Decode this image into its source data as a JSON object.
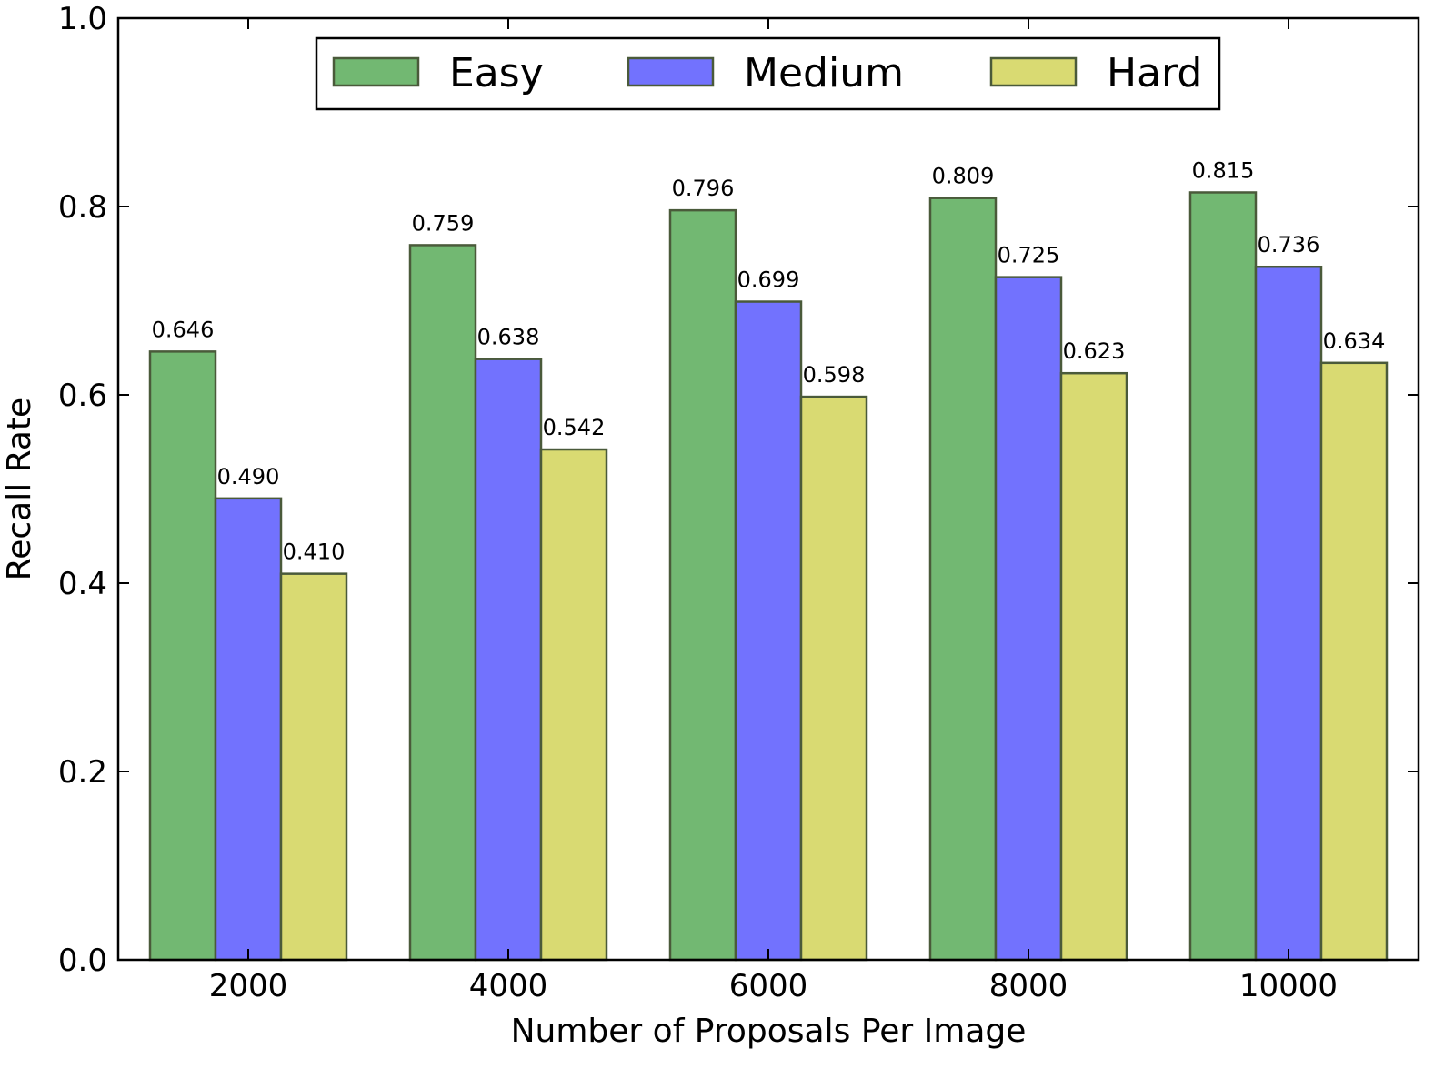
{
  "chart_data": {
    "type": "bar",
    "title": "",
    "xlabel": "Number of Proposals Per Image",
    "ylabel": "Recall Rate",
    "categories": [
      "2000",
      "4000",
      "6000",
      "8000",
      "10000"
    ],
    "ylim": [
      0,
      1.0
    ],
    "yticks": [
      "0.0",
      "0.2",
      "0.4",
      "0.6",
      "0.8",
      "1.0"
    ],
    "grid": false,
    "legend_position": "top-center",
    "series": [
      {
        "name": "Easy",
        "color": "#72b872",
        "values": [
          0.646,
          0.759,
          0.796,
          0.809,
          0.815
        ],
        "labels": [
          "0.646",
          "0.759",
          "0.796",
          "0.809",
          "0.815"
        ]
      },
      {
        "name": "Medium",
        "color": "#7272fe",
        "values": [
          0.49,
          0.638,
          0.699,
          0.725,
          0.736
        ],
        "labels": [
          "0.490",
          "0.638",
          "0.699",
          "0.725",
          "0.736"
        ]
      },
      {
        "name": "Hard",
        "color": "#d9da72",
        "values": [
          0.41,
          0.542,
          0.598,
          0.623,
          0.634
        ],
        "labels": [
          "0.410",
          "0.542",
          "0.598",
          "0.623",
          "0.634"
        ]
      }
    ]
  }
}
